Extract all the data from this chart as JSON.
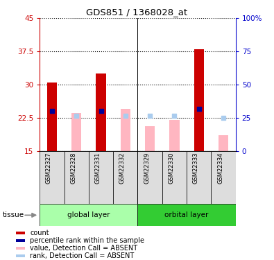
{
  "title": "GDS851 / 1368028_at",
  "samples": [
    "GSM22327",
    "GSM22328",
    "GSM22331",
    "GSM22332",
    "GSM22329",
    "GSM22330",
    "GSM22333",
    "GSM22334"
  ],
  "ylim_left": [
    15,
    45
  ],
  "ylim_right": [
    0,
    100
  ],
  "yticks_left": [
    15,
    22.5,
    30,
    37.5,
    45
  ],
  "yticks_right": [
    0,
    25,
    50,
    75,
    100
  ],
  "ytick_labels_left": [
    "15",
    "22.5",
    "30",
    "37.5",
    "45"
  ],
  "ytick_labels_right": [
    "0",
    "25",
    "50",
    "75",
    "100%"
  ],
  "red_bars": [
    30.5,
    null,
    32.5,
    null,
    null,
    null,
    38.0,
    null
  ],
  "pink_bars": [
    null,
    23.5,
    null,
    24.5,
    20.5,
    22.0,
    null,
    18.5
  ],
  "blue_squares_y": [
    24.0,
    null,
    24.0,
    null,
    null,
    null,
    24.5,
    null
  ],
  "lightblue_squares_y": [
    null,
    23.0,
    null,
    23.0,
    23.0,
    23.0,
    null,
    22.5
  ],
  "bar_bottom": 15,
  "left_axis_color": "#CC0000",
  "right_axis_color": "#0000CC",
  "bar_width": 0.4,
  "group1_label": "global layer",
  "group2_label": "orbital layer",
  "group1_color": "#AAFFAA",
  "group2_color": "#33CC33",
  "tissue_label": "tissue",
  "legend_items": [
    {
      "color": "#CC0000",
      "label": "count"
    },
    {
      "color": "#000099",
      "label": "percentile rank within the sample"
    },
    {
      "color": "#FFB6C1",
      "label": "value, Detection Call = ABSENT"
    },
    {
      "color": "#AACCEE",
      "label": "rank, Detection Call = ABSENT"
    }
  ]
}
